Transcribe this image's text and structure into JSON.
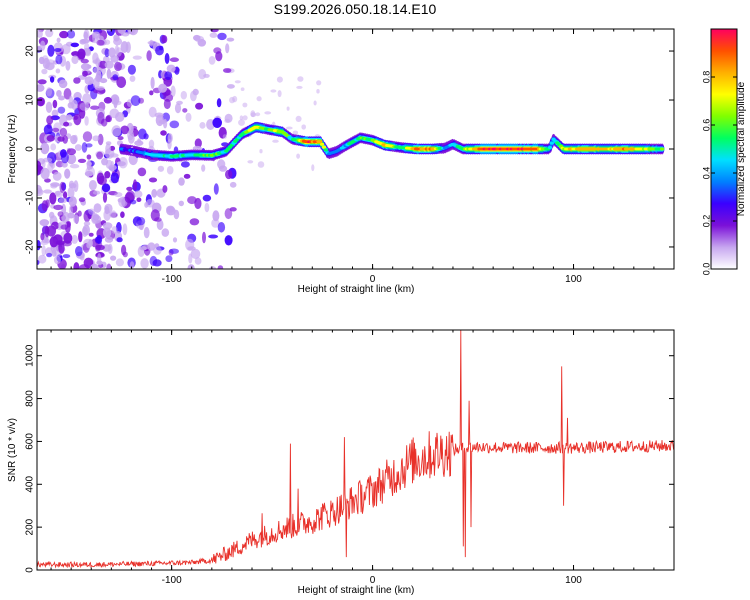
{
  "title": "S199.2026.050.18.14.E10",
  "chart_data": [
    {
      "type": "heatmap",
      "xlabel": "Height of straight line (km)",
      "ylabel": "Frequency (Hz)",
      "xlim": [
        -167,
        150
      ],
      "ylim": [
        -24.5,
        24.5
      ],
      "x_ticks": [
        -100,
        0,
        100
      ],
      "y_ticks": [
        -20,
        -10,
        0,
        10,
        20
      ],
      "colorbar": {
        "label": "Normalized spectral amplitude",
        "range": [
          0,
          1
        ],
        "ticks": [
          0.0,
          0.2,
          0.4,
          0.6,
          0.8
        ],
        "tick_labels": [
          "0.0",
          "0.2",
          "0.4",
          "0.6",
          "0.8"
        ],
        "colors": [
          "#ffffff",
          "#c7a6f0",
          "#7b10d8",
          "#3a00ff",
          "#0080ff",
          "#00e0ff",
          "#00ff60",
          "#80ff00",
          "#ffff00",
          "#ffb000",
          "#ff5000",
          "#ff0060"
        ]
      },
      "noise_region_x": [
        -167,
        -77
      ],
      "signal_track": [
        {
          "x": -125,
          "f": 0.0,
          "a": 0.35
        },
        {
          "x": -120,
          "f": -0.3,
          "a": 0.3
        },
        {
          "x": -110,
          "f": -1.2,
          "a": 0.45
        },
        {
          "x": -100,
          "f": -1.5,
          "a": 0.55
        },
        {
          "x": -90,
          "f": -1.2,
          "a": 0.5
        },
        {
          "x": -80,
          "f": -1.3,
          "a": 0.6
        },
        {
          "x": -73,
          "f": -0.5,
          "a": 0.5
        },
        {
          "x": -65,
          "f": 3.0,
          "a": 0.55
        },
        {
          "x": -58,
          "f": 4.5,
          "a": 0.75
        },
        {
          "x": -52,
          "f": 4.0,
          "a": 0.6
        },
        {
          "x": -45,
          "f": 3.5,
          "a": 0.7
        },
        {
          "x": -40,
          "f": 2.0,
          "a": 0.45
        },
        {
          "x": -33,
          "f": 1.5,
          "a": 0.95
        },
        {
          "x": -26,
          "f": 1.5,
          "a": 0.85
        },
        {
          "x": -22,
          "f": -1.0,
          "a": 0.4
        },
        {
          "x": -18,
          "f": -0.5,
          "a": 0.35
        },
        {
          "x": -12,
          "f": 1.0,
          "a": 0.45
        },
        {
          "x": -6,
          "f": 2.3,
          "a": 0.55
        },
        {
          "x": 0,
          "f": 1.8,
          "a": 0.6
        },
        {
          "x": 6,
          "f": 0.8,
          "a": 0.85
        },
        {
          "x": 14,
          "f": 0.3,
          "a": 0.5
        },
        {
          "x": 22,
          "f": 0.0,
          "a": 0.9
        },
        {
          "x": 30,
          "f": 0.0,
          "a": 0.85
        },
        {
          "x": 36,
          "f": 0.2,
          "a": 0.4
        },
        {
          "x": 40,
          "f": 1.0,
          "a": 0.4
        },
        {
          "x": 45,
          "f": 0.0,
          "a": 0.6
        },
        {
          "x": 55,
          "f": 0.0,
          "a": 0.95
        },
        {
          "x": 70,
          "f": 0.0,
          "a": 0.95
        },
        {
          "x": 82,
          "f": 0.0,
          "a": 0.9
        },
        {
          "x": 88,
          "f": 0.0,
          "a": 0.45
        },
        {
          "x": 90,
          "f": 2.0,
          "a": 0.45
        },
        {
          "x": 95,
          "f": 0.0,
          "a": 0.7
        },
        {
          "x": 105,
          "f": 0.0,
          "a": 0.85
        },
        {
          "x": 115,
          "f": 0.0,
          "a": 0.75
        },
        {
          "x": 125,
          "f": 0.0,
          "a": 0.85
        },
        {
          "x": 135,
          "f": 0.0,
          "a": 0.7
        },
        {
          "x": 145,
          "f": 0.0,
          "a": 0.55
        }
      ]
    },
    {
      "type": "line",
      "xlabel": "Height of straight line (km)",
      "ylabel": "SNR (10 * v/v)",
      "xlim": [
        -167,
        150
      ],
      "ylim": [
        0,
        1120
      ],
      "x_ticks": [
        -100,
        0,
        100
      ],
      "y_ticks": [
        0,
        200,
        400,
        600,
        800,
        1000
      ],
      "color": "#e8312a",
      "trend": [
        {
          "x": -167,
          "y": 25
        },
        {
          "x": -140,
          "y": 25
        },
        {
          "x": -110,
          "y": 30
        },
        {
          "x": -90,
          "y": 35
        },
        {
          "x": -80,
          "y": 45
        },
        {
          "x": -70,
          "y": 90
        },
        {
          "x": -60,
          "y": 140
        },
        {
          "x": -45,
          "y": 190
        },
        {
          "x": -30,
          "y": 230
        },
        {
          "x": -20,
          "y": 270
        },
        {
          "x": -10,
          "y": 320
        },
        {
          "x": 0,
          "y": 370
        },
        {
          "x": 10,
          "y": 440
        },
        {
          "x": 20,
          "y": 510
        },
        {
          "x": 30,
          "y": 540
        },
        {
          "x": 40,
          "y": 560
        },
        {
          "x": 50,
          "y": 575
        },
        {
          "x": 70,
          "y": 570
        },
        {
          "x": 100,
          "y": 570
        },
        {
          "x": 150,
          "y": 580
        }
      ],
      "spikes": [
        {
          "x": -55,
          "y": 265
        },
        {
          "x": -41,
          "y": 590
        },
        {
          "x": -37,
          "y": 380
        },
        {
          "x": -25,
          "y": 310
        },
        {
          "x": -14,
          "y": 620
        },
        {
          "x": -13,
          "y": 60
        },
        {
          "x": 44,
          "y": 1120
        },
        {
          "x": 45,
          "y": 110
        },
        {
          "x": 46,
          "y": 60
        },
        {
          "x": 48,
          "y": 790
        },
        {
          "x": 49,
          "y": 200
        },
        {
          "x": 94,
          "y": 950
        },
        {
          "x": 95,
          "y": 300
        },
        {
          "x": 97,
          "y": 710
        }
      ]
    }
  ]
}
